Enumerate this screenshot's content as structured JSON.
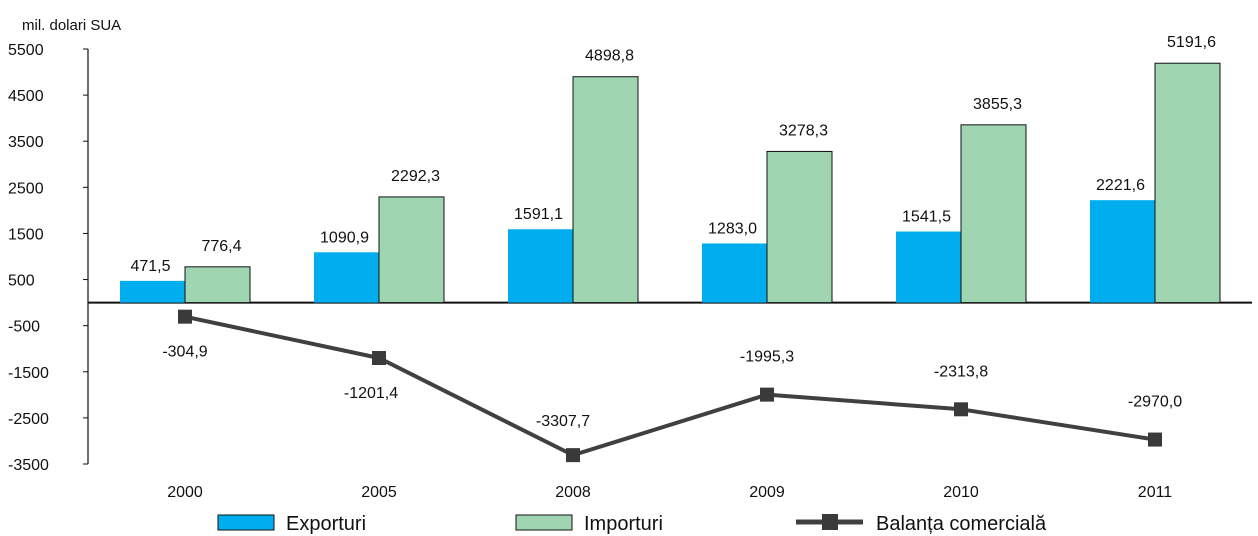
{
  "chart_data": {
    "type": "bar",
    "unit_label": "mil. dolari SUA",
    "categories": [
      "2000",
      "2005",
      "2008",
      "2009",
      "2010",
      "2011"
    ],
    "ylim": [
      -3500,
      5500
    ],
    "yticks": [
      "5500",
      "4500",
      "3500",
      "2500",
      "1500",
      "500",
      "-500",
      "-1500",
      "-2500",
      "-3500"
    ],
    "ytick_values": [
      5500,
      4500,
      3500,
      2500,
      1500,
      500,
      -500,
      -1500,
      -2500,
      -3500
    ],
    "grid": false,
    "legend_position": "bottom",
    "series": [
      {
        "name": "Exporturi",
        "kind": "bar",
        "color": "#00aeef",
        "values": [
          471.5,
          1090.9,
          1591.1,
          1283.0,
          1541.5,
          2221.6
        ],
        "labels": [
          "471,5",
          "1090,9",
          "1591,1",
          "1283,0",
          "1541,5",
          "2221,6"
        ]
      },
      {
        "name": "Importuri",
        "kind": "bar",
        "color": "#9fd5b1",
        "values": [
          776.4,
          2292.3,
          4898.8,
          3278.3,
          3855.3,
          5191.6
        ],
        "labels": [
          "776,4",
          "2292,3",
          "4898,8",
          "3278,3",
          "3855,3",
          "5191,6"
        ]
      },
      {
        "name": "Balanța comercială",
        "kind": "line",
        "color": "#404040",
        "values": [
          -304.9,
          -1201.4,
          -3307.7,
          -1995.3,
          -2313.8,
          -2970.0
        ],
        "labels": [
          "-304,9",
          "-1201,4",
          "-3307,7",
          "-1995,3",
          "-2313,8",
          "-2970,0"
        ]
      }
    ]
  }
}
